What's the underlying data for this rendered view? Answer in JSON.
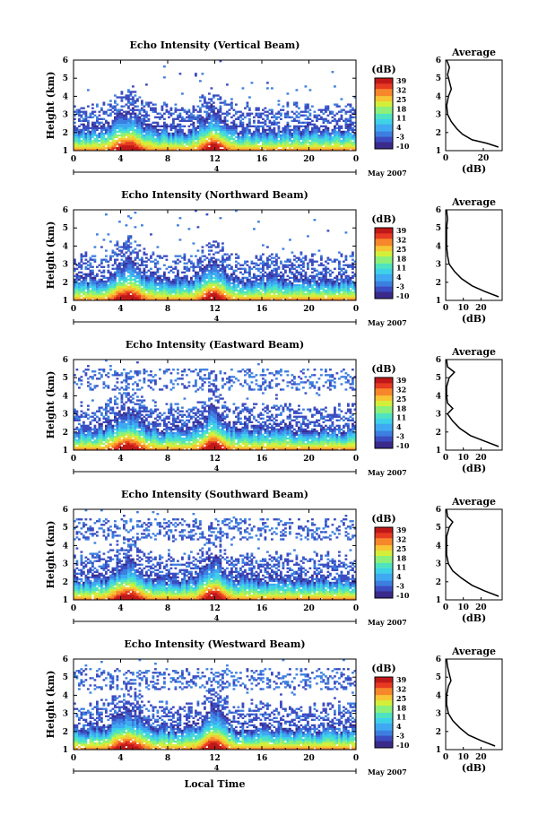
{
  "figure": {
    "date_label": "May 2007",
    "xlabel_bottom": "Local Time",
    "sub_axis_label": "4"
  },
  "colors": {
    "colormap": [
      "#3a2a8a",
      "#3b4cc0",
      "#3d7fe0",
      "#3fa9f2",
      "#3fd1e8",
      "#4fe3c0",
      "#8cf07a",
      "#d4ef3a",
      "#f7c535",
      "#f7872b",
      "#e63a22",
      "#c01818"
    ]
  },
  "chart_data": [
    {
      "type": "heatmap",
      "title": "Echo Intensity (Vertical Beam)",
      "ylabel": "Height (km)",
      "xlim": [
        0,
        24
      ],
      "ylim": [
        1,
        6
      ],
      "xticks": [
        "0",
        "4",
        "8",
        "12",
        "16",
        "20",
        "0"
      ],
      "yticks": [
        "1",
        "2",
        "3",
        "4",
        "5",
        "6"
      ],
      "colorbar": {
        "unit": "(dB)",
        "ticks": [
          "39",
          "32",
          "25",
          "18",
          "11",
          "4",
          "-3",
          "-10"
        ]
      },
      "avg": {
        "title": "Average",
        "xlabel": "(dB)",
        "xticks": [
          "0",
          "20"
        ],
        "xlim": [
          0,
          30
        ],
        "profile": [
          [
            28,
            1.2
          ],
          [
            22,
            1.4
          ],
          [
            14,
            1.6
          ],
          [
            9,
            1.9
          ],
          [
            6,
            2.2
          ],
          [
            3,
            2.6
          ],
          [
            1,
            3.0
          ],
          [
            0.5,
            3.5
          ],
          [
            1.5,
            4.0
          ],
          [
            3,
            4.4
          ],
          [
            2,
            4.8
          ],
          [
            1,
            5.2
          ],
          [
            2,
            5.6
          ],
          [
            0.5,
            6.0
          ]
        ]
      }
    },
    {
      "type": "heatmap",
      "title": "Echo Intensity (Northward Beam)",
      "ylabel": "Height (km)",
      "xlim": [
        0,
        24
      ],
      "ylim": [
        1,
        6
      ],
      "xticks": [
        "0",
        "4",
        "8",
        "12",
        "16",
        "20",
        "0"
      ],
      "yticks": [
        "1",
        "2",
        "3",
        "4",
        "5",
        "6"
      ],
      "colorbar": {
        "unit": "(dB)",
        "ticks": [
          "39",
          "32",
          "25",
          "18",
          "11",
          "4",
          "-3",
          "-10"
        ]
      },
      "avg": {
        "title": "Average",
        "xlabel": "(dB)",
        "xticks": [
          "0",
          "10",
          "20"
        ],
        "xlim": [
          0,
          32
        ],
        "profile": [
          [
            30,
            1.2
          ],
          [
            22,
            1.5
          ],
          [
            15,
            1.8
          ],
          [
            9,
            2.2
          ],
          [
            5,
            2.6
          ],
          [
            2,
            3.0
          ],
          [
            1,
            3.5
          ],
          [
            0.5,
            4.0
          ],
          [
            0.5,
            4.5
          ],
          [
            0.5,
            5.0
          ],
          [
            1,
            5.5
          ],
          [
            0.5,
            6.0
          ]
        ]
      }
    },
    {
      "type": "heatmap",
      "title": "Echo Intensity (Eastward Beam)",
      "ylabel": "Height (km)",
      "xlim": [
        0,
        24
      ],
      "ylim": [
        1,
        6
      ],
      "xticks": [
        "0",
        "4",
        "8",
        "12",
        "16",
        "20",
        "0"
      ],
      "yticks": [
        "1",
        "2",
        "3",
        "4",
        "5",
        "6"
      ],
      "colorbar": {
        "unit": "(dB)",
        "ticks": [
          "39",
          "32",
          "25",
          "18",
          "11",
          "4",
          "-3",
          "-10"
        ]
      },
      "avg": {
        "title": "Average",
        "xlabel": "(dB)",
        "xticks": [
          "0",
          "10",
          "20"
        ],
        "xlim": [
          0,
          32
        ],
        "profile": [
          [
            30,
            1.2
          ],
          [
            22,
            1.5
          ],
          [
            14,
            1.8
          ],
          [
            8,
            2.2
          ],
          [
            4,
            2.6
          ],
          [
            1,
            3.0
          ],
          [
            4,
            3.3
          ],
          [
            1,
            3.6
          ],
          [
            0.5,
            4.0
          ],
          [
            0.5,
            4.5
          ],
          [
            2,
            5.0
          ],
          [
            5,
            5.3
          ],
          [
            1,
            5.6
          ],
          [
            0.5,
            6.0
          ]
        ]
      }
    },
    {
      "type": "heatmap",
      "title": "Echo Intensity (Southward Beam)",
      "ylabel": "Height (km)",
      "xlim": [
        0,
        24
      ],
      "ylim": [
        1,
        6
      ],
      "xticks": [
        "0",
        "4",
        "8",
        "12",
        "16",
        "20",
        "0"
      ],
      "yticks": [
        "1",
        "2",
        "3",
        "4",
        "5",
        "6"
      ],
      "colorbar": {
        "unit": "(dB)",
        "ticks": [
          "39",
          "32",
          "25",
          "18",
          "11",
          "4",
          "-3",
          "-10"
        ]
      },
      "avg": {
        "title": "Average",
        "xlabel": "(dB)",
        "xticks": [
          "0",
          "10",
          "20"
        ],
        "xlim": [
          0,
          32
        ],
        "profile": [
          [
            30,
            1.2
          ],
          [
            22,
            1.5
          ],
          [
            15,
            1.8
          ],
          [
            9,
            2.2
          ],
          [
            4,
            2.6
          ],
          [
            1.5,
            3.0
          ],
          [
            0.5,
            3.5
          ],
          [
            0.5,
            4.0
          ],
          [
            0.5,
            4.5
          ],
          [
            2,
            5.0
          ],
          [
            4,
            5.3
          ],
          [
            1,
            5.6
          ],
          [
            0.5,
            6.0
          ]
        ]
      }
    },
    {
      "type": "heatmap",
      "title": "Echo Intensity (Westward Beam)",
      "ylabel": "Height (km)",
      "xlim": [
        0,
        24
      ],
      "ylim": [
        1,
        6
      ],
      "xticks": [
        "0",
        "4",
        "8",
        "12",
        "16",
        "20",
        "0"
      ],
      "yticks": [
        "1",
        "2",
        "3",
        "4",
        "5",
        "6"
      ],
      "colorbar": {
        "unit": "(dB)",
        "ticks": [
          "39",
          "32",
          "25",
          "18",
          "11",
          "4",
          "-3",
          "-10"
        ]
      },
      "avg": {
        "title": "Average",
        "xlabel": "(dB)",
        "xticks": [
          "0",
          "10",
          "20"
        ],
        "xlim": [
          0,
          32
        ],
        "profile": [
          [
            28,
            1.2
          ],
          [
            20,
            1.5
          ],
          [
            13,
            1.8
          ],
          [
            8,
            2.2
          ],
          [
            4,
            2.6
          ],
          [
            1.5,
            3.0
          ],
          [
            0.5,
            3.5
          ],
          [
            0.5,
            4.0
          ],
          [
            1.5,
            4.5
          ],
          [
            3,
            4.8
          ],
          [
            2,
            5.2
          ],
          [
            1,
            5.6
          ],
          [
            0.5,
            6.0
          ]
        ]
      }
    }
  ]
}
